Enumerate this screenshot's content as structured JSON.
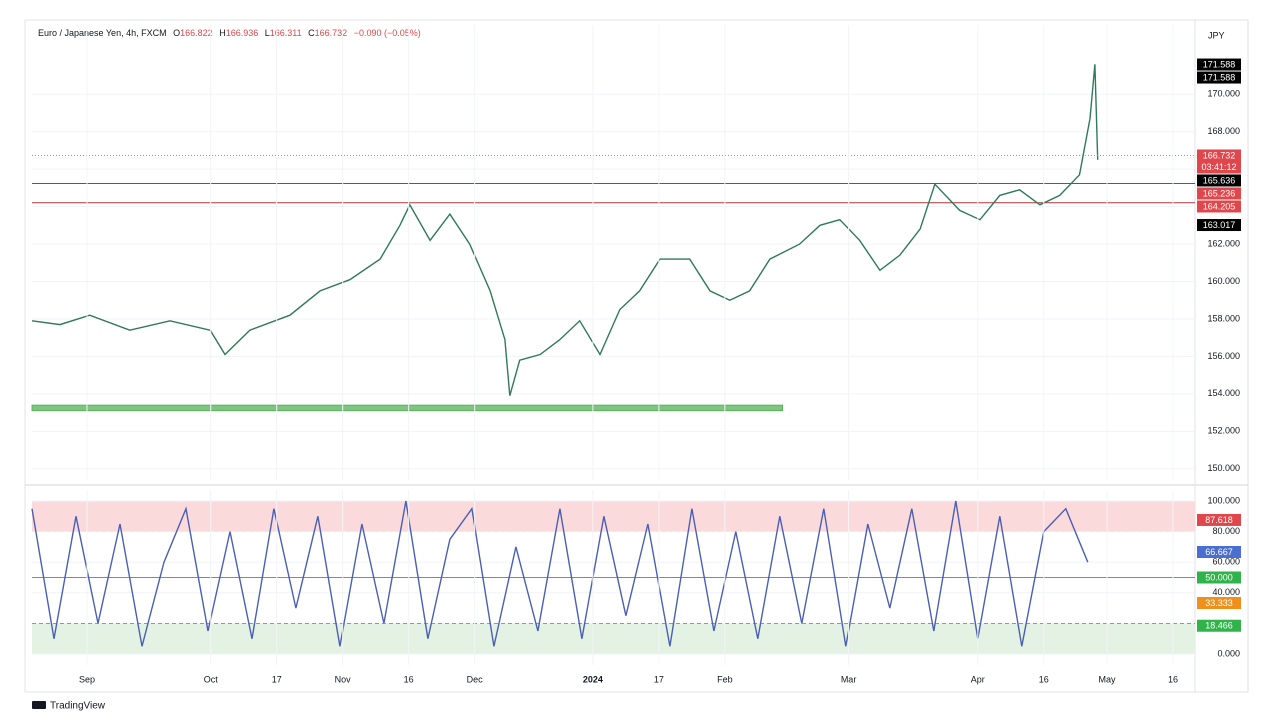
{
  "header": {
    "symbol": "Euro / Japanese Yen, 4h, FXCM",
    "ohlc": [
      {
        "label": "O",
        "value": "166.822"
      },
      {
        "label": "H",
        "value": "166.936"
      },
      {
        "label": "L",
        "value": "166.311"
      },
      {
        "label": "C",
        "value": "166.732"
      }
    ],
    "change": "−0.090 (−0.05%)"
  },
  "currency": "JPY",
  "branding": "TradingView",
  "chart_data": [
    {
      "type": "line",
      "color": "#2f7a58",
      "x": [
        0,
        5.1,
        10.5,
        17.8,
        25.1,
        32.4,
        35.1,
        39.6,
        46.9,
        52.4,
        57.8,
        63.3,
        66.9,
        68.7,
        72.4,
        76,
        79.6,
        83.3,
        86,
        86.9,
        88.7,
        92.4,
        96,
        99.6,
        103.3,
        106.9,
        110.5,
        114.2,
        119.6,
        123.3,
        126.9,
        130.5,
        134.2,
        139.6,
        143.3,
        146.9,
        150.5,
        154.2,
        157.8,
        161.5,
        164.2,
        168.7,
        172.4,
        176,
        179.6,
        183.3,
        186.9,
        190.5,
        192.4,
        193.3,
        193.8
      ],
      "values": [
        157.9,
        157.7,
        158.2,
        157.4,
        157.9,
        157.4,
        156.1,
        157.4,
        158.2,
        159.5,
        160.1,
        161.2,
        163.0,
        164.1,
        162.2,
        163.6,
        162.0,
        159.5,
        156.9,
        153.9,
        155.8,
        156.1,
        156.9,
        157.9,
        156.1,
        158.5,
        159.5,
        161.2,
        161.2,
        159.5,
        159.0,
        159.5,
        161.2,
        162.0,
        163.0,
        163.3,
        162.2,
        160.6,
        161.4,
        162.8,
        165.2,
        163.8,
        163.3,
        164.6,
        164.9,
        164.1,
        164.6,
        165.7,
        168.7,
        171.6,
        166.5
      ],
      "xlim": [
        0,
        211.5
      ],
      "ylim": [
        149.4,
        173.7
      ],
      "yticks": [
        {
          "value": 150,
          "label": "150.000"
        },
        {
          "value": 152,
          "label": "152.000"
        },
        {
          "value": 154,
          "label": "154.000"
        },
        {
          "value": 156,
          "label": "156.000"
        },
        {
          "value": 158,
          "label": "158.000"
        },
        {
          "value": 160,
          "label": "160.000"
        },
        {
          "value": 162,
          "label": "162.000"
        },
        {
          "value": 164,
          "label": "164.000"
        },
        {
          "value": 166,
          "label": "166.000"
        },
        {
          "value": 168,
          "label": "168.000"
        },
        {
          "value": 170,
          "label": "170.000"
        }
      ],
      "levels": [
        {
          "value": 165.236,
          "color": "#b2353a"
        },
        {
          "value": 164.205,
          "color": "#b2353a"
        }
      ],
      "zones": [
        {
          "x": [
            0,
            136.5
          ],
          "ylim": [
            153.1,
            153.4
          ],
          "color": "#7fc47f"
        }
      ],
      "price_labels": [
        {
          "value": 171.588,
          "label": "171.588",
          "color": "#000000"
        },
        {
          "value": 171.588,
          "label": "171.588",
          "color": "#000000"
        },
        {
          "value": 166.732,
          "label": "166.732",
          "sub": "03:41:12",
          "color": "#e0474c"
        },
        {
          "value": 165.636,
          "label": "165.636",
          "color": "#000000"
        },
        {
          "value": 165.236,
          "label": "165.236",
          "color": "#e0474c"
        },
        {
          "value": 164.205,
          "label": "164.205",
          "color": "#e0474c"
        },
        {
          "value": 163.017,
          "label": "163.017",
          "color": "#000000"
        }
      ]
    },
    {
      "type": "line",
      "color": "#4a5fb5",
      "x": [
        0,
        4,
        8,
        12,
        16,
        20,
        24,
        28,
        32,
        36,
        40,
        44,
        48,
        52,
        56,
        60,
        64,
        68,
        72,
        76,
        80,
        84,
        88,
        92,
        96,
        100,
        104,
        108,
        112,
        116,
        120,
        124,
        128,
        132,
        136,
        140,
        144,
        148,
        152,
        156,
        160,
        164,
        168,
        172,
        176,
        180,
        184,
        188,
        192
      ],
      "values": [
        95,
        10,
        90,
        20,
        85,
        5,
        60,
        95,
        15,
        80,
        10,
        95,
        30,
        90,
        5,
        85,
        20,
        100,
        10,
        75,
        95,
        5,
        70,
        15,
        95,
        10,
        90,
        25,
        85,
        5,
        95,
        15,
        80,
        10,
        90,
        20,
        95,
        5,
        85,
        30,
        95,
        15,
        100,
        10,
        90,
        5,
        80,
        95,
        60
      ],
      "xlim": [
        0,
        211.5
      ],
      "ylim": [
        -7.2,
        107.2
      ],
      "xticks": [
        {
          "value": 10,
          "label": "Sep"
        },
        {
          "value": 32.5,
          "label": "Oct"
        },
        {
          "value": 44.5,
          "label": "17"
        },
        {
          "value": 56.5,
          "label": "Nov"
        },
        {
          "value": 68.5,
          "label": "16"
        },
        {
          "value": 80.5,
          "label": "Dec"
        },
        {
          "value": 102,
          "label": "2024"
        },
        {
          "value": 114,
          "label": "17"
        },
        {
          "value": 126,
          "label": "Feb"
        },
        {
          "value": 148.5,
          "label": "Mar"
        },
        {
          "value": 172,
          "label": "Apr"
        },
        {
          "value": 184,
          "label": "16"
        },
        {
          "value": 195.5,
          "label": "May"
        },
        {
          "value": 207.5,
          "label": "16"
        }
      ],
      "yticks": [
        {
          "value": 0,
          "label": "0.000"
        },
        {
          "value": 40,
          "label": "40.000"
        },
        {
          "value": 60,
          "label": "60.000"
        },
        {
          "value": 80,
          "label": "80.000"
        },
        {
          "value": 100,
          "label": "100.000"
        }
      ],
      "bands": [
        {
          "ylim": [
            80,
            100
          ],
          "color": "#fbdadb"
        },
        {
          "ylim": [
            0,
            20
          ],
          "color": "#e3f2e3"
        }
      ],
      "levels": [
        {
          "value": 50,
          "color": "#4caf50"
        }
      ],
      "price_labels": [
        {
          "value": 87.618,
          "label": "87.618",
          "color": "#e0474c"
        },
        {
          "value": 66.667,
          "label": "66.667",
          "color": "#4a6fd0"
        },
        {
          "value": 50,
          "label": "50.000",
          "color": "#2fb34a"
        },
        {
          "value": 33.333,
          "label": "33.333",
          "color": "#f0901a"
        },
        {
          "value": 18.466,
          "label": "18.466",
          "color": "#2fb34a"
        }
      ]
    }
  ]
}
